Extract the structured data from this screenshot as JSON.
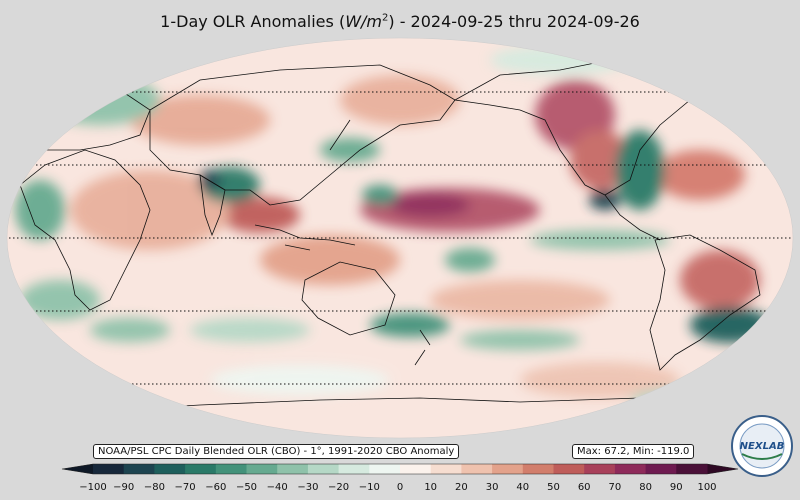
{
  "title": {
    "prefix": "1-Day OLR Anomalies (",
    "unit_base": "W/m",
    "unit_exp": "2",
    "suffix": ") - 2024-09-25 thru 2024-09-26"
  },
  "info": {
    "source": "NOAA/PSL CPC Daily Blended OLR (CBO) - 1°, 1991-2020 CBO Anomaly",
    "stats": "Max: 67.2,  Min: -119.0"
  },
  "colorbar": {
    "min": -100,
    "max": 100,
    "ticks": [
      "−100",
      "−90",
      "−80",
      "−70",
      "−60",
      "−50",
      "−40",
      "−30",
      "−20",
      "−10",
      "0",
      "10",
      "20",
      "30",
      "40",
      "50",
      "60",
      "70",
      "80",
      "90",
      "100"
    ],
    "colors": [
      "#17283b",
      "#1d4450",
      "#1e5f5c",
      "#2a7a68",
      "#43927a",
      "#66aa90",
      "#8fc2aa",
      "#b5d8c6",
      "#d6eadf",
      "#eef6f1",
      "#fbf2ec",
      "#f6ddd0",
      "#efc2ae",
      "#e3a28b",
      "#d27e6c",
      "#bf5d5a",
      "#a8405a",
      "#8e2a5a",
      "#6e1a50",
      "#4a1038"
    ]
  },
  "logo": {
    "text": "NEXLAB"
  },
  "map": {
    "projection": "Robinson (Pacific-centered)",
    "gridlines": [
      "60°N",
      "30°N",
      "0°",
      "30°S",
      "60°S"
    ],
    "colors": {
      "ocean_base": "#f9e6df",
      "border": "#111111"
    }
  }
}
